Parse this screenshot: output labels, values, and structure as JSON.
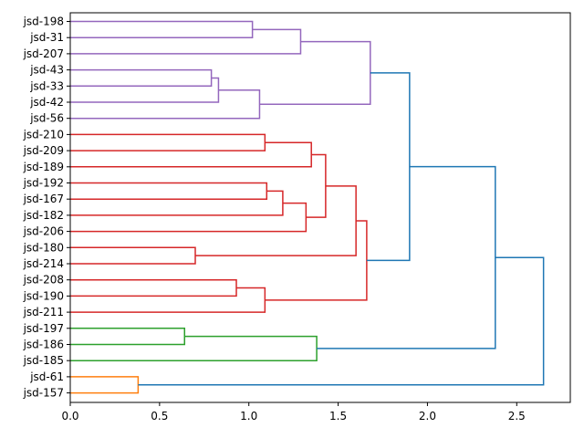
{
  "chart_data": {
    "type": "dendrogram",
    "orientation": "horizontal",
    "title": "",
    "xlabel": "",
    "ylabel": "",
    "xlim": [
      0,
      2.8
    ],
    "xticks": [
      0.0,
      0.5,
      1.0,
      1.5,
      2.0,
      2.5
    ],
    "xtick_labels": [
      "0.0",
      "0.5",
      "1.0",
      "1.5",
      "2.0",
      "2.5"
    ],
    "leaves": [
      "jsd-198",
      "jsd-31",
      "jsd-207",
      "jsd-43",
      "jsd-33",
      "jsd-42",
      "jsd-56",
      "jsd-210",
      "jsd-209",
      "jsd-189",
      "jsd-192",
      "jsd-167",
      "jsd-182",
      "jsd-206",
      "jsd-180",
      "jsd-214",
      "jsd-208",
      "jsd-190",
      "jsd-211",
      "jsd-197",
      "jsd-186",
      "jsd-185",
      "jsd-61",
      "jsd-157"
    ],
    "merges": [
      {
        "id": "m1",
        "children": [
          "jsd-198",
          "jsd-31"
        ],
        "height": 1.02,
        "color": "#9467bd"
      },
      {
        "id": "m2",
        "children": [
          "m1",
          "jsd-207"
        ],
        "height": 1.29,
        "color": "#9467bd"
      },
      {
        "id": "m3",
        "children": [
          "jsd-43",
          "jsd-33"
        ],
        "height": 0.79,
        "color": "#9467bd"
      },
      {
        "id": "m4",
        "children": [
          "m3",
          "jsd-42"
        ],
        "height": 0.83,
        "color": "#9467bd"
      },
      {
        "id": "m5",
        "children": [
          "m4",
          "jsd-56"
        ],
        "height": 1.06,
        "color": "#9467bd"
      },
      {
        "id": "m6",
        "children": [
          "m2",
          "m5"
        ],
        "height": 1.68,
        "color": "#9467bd"
      },
      {
        "id": "m7",
        "children": [
          "jsd-210",
          "jsd-209"
        ],
        "height": 1.09,
        "color": "#d62728"
      },
      {
        "id": "m8",
        "children": [
          "m7",
          "jsd-189"
        ],
        "height": 1.35,
        "color": "#d62728"
      },
      {
        "id": "m9",
        "children": [
          "jsd-192",
          "jsd-167"
        ],
        "height": 1.1,
        "color": "#d62728"
      },
      {
        "id": "m10",
        "children": [
          "m9",
          "jsd-182"
        ],
        "height": 1.19,
        "color": "#d62728"
      },
      {
        "id": "m11",
        "children": [
          "m10",
          "jsd-206"
        ],
        "height": 1.32,
        "color": "#d62728"
      },
      {
        "id": "m12",
        "children": [
          "m8",
          "m11"
        ],
        "height": 1.43,
        "color": "#d62728"
      },
      {
        "id": "m13",
        "children": [
          "jsd-180",
          "jsd-214"
        ],
        "height": 0.7,
        "color": "#d62728"
      },
      {
        "id": "m14",
        "children": [
          "m12",
          "m13"
        ],
        "height": 1.6,
        "color": "#d62728"
      },
      {
        "id": "m15",
        "children": [
          "jsd-208",
          "jsd-190"
        ],
        "height": 0.93,
        "color": "#d62728"
      },
      {
        "id": "m16",
        "children": [
          "m15",
          "jsd-211"
        ],
        "height": 1.09,
        "color": "#d62728"
      },
      {
        "id": "m17",
        "children": [
          "m14",
          "m16"
        ],
        "height": 1.66,
        "color": "#d62728"
      },
      {
        "id": "m18",
        "children": [
          "m6",
          "m17"
        ],
        "height": 1.9,
        "color": "#1f77b4"
      },
      {
        "id": "m19",
        "children": [
          "jsd-197",
          "jsd-186"
        ],
        "height": 0.64,
        "color": "#2ca02c"
      },
      {
        "id": "m20",
        "children": [
          "m19",
          "jsd-185"
        ],
        "height": 1.38,
        "color": "#2ca02c"
      },
      {
        "id": "m21",
        "children": [
          "m18",
          "m20"
        ],
        "height": 2.38,
        "color": "#1f77b4"
      },
      {
        "id": "m22",
        "children": [
          "jsd-61",
          "jsd-157"
        ],
        "height": 0.38,
        "color": "#ff7f0e"
      },
      {
        "id": "m23",
        "children": [
          "m21",
          "m22"
        ],
        "height": 2.65,
        "color": "#1f77b4"
      }
    ]
  }
}
